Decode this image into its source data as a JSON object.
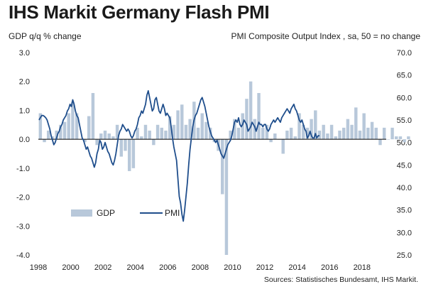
{
  "title": "IHS Markit Germany Flash PMI",
  "chart_data": {
    "type": "bar+line",
    "title": "IHS Markit Germany Flash PMI",
    "y_left_label": "GDP q/q % change",
    "y_right_label": "PMI Composite  Output Index  , sa, 50 = no change",
    "source": "Sources: Statistisches Bundesamt, IHS Markit.",
    "y_left_ticks": [
      "3.0",
      "2.0",
      "1.0",
      "0.0",
      "-1.0",
      "-2.0",
      "-3.0",
      "-4.0"
    ],
    "y_left_lim": [
      -4.0,
      3.0
    ],
    "y_right_ticks": [
      "70.0",
      "65.0",
      "60.0",
      "55.0",
      "50.0",
      "45.0",
      "40.0",
      "35.0",
      "30.0",
      "25.0"
    ],
    "y_right_lim": [
      25.0,
      70.0
    ],
    "x_ticks": [
      "1998",
      "2000",
      "2002",
      "2004",
      "2006",
      "2008",
      "2010",
      "2012",
      "2014",
      "2016",
      "2018"
    ],
    "x_range": [
      1998.0,
      2019.5
    ],
    "legend": {
      "gdp": "GDP",
      "pmi": "PMI",
      "position": "lower-left"
    },
    "colors": {
      "gdp": "#b8c8da",
      "pmi": "#1f4e8c",
      "zero_line": "#000000"
    },
    "gdp": {
      "name": "GDP",
      "start_year": 1998,
      "quarterly_values": [
        0.9,
        -0.1,
        0.3,
        0.1,
        0.3,
        0.5,
        0.6,
        0.9,
        1.3,
        0.9,
        0.0,
        -0.1,
        0.8,
        1.6,
        -0.2,
        0.2,
        0.3,
        0.2,
        0.1,
        0.5,
        -0.6,
        -0.4,
        -1.1,
        -1.0,
        0.4,
        0.1,
        0.5,
        0.3,
        -0.2,
        0.5,
        0.4,
        0.3,
        0.8,
        0.5,
        1.0,
        1.2,
        0.5,
        0.7,
        1.3,
        0.4,
        0.9,
        0.6,
        0.4,
        -0.1,
        -0.4,
        -1.9,
        -4.0,
        0.3,
        0.7,
        0.4,
        0.9,
        1.4,
        2.0,
        0.7,
        1.6,
        0.4,
        0.5,
        -0.1,
        0.2,
        0.0,
        -0.5,
        0.3,
        0.4,
        0.1,
        0.9,
        0.5,
        0.4,
        0.7,
        1.0,
        0.3,
        0.5,
        0.2,
        0.5,
        0.1,
        0.3,
        0.4,
        0.7,
        0.5,
        1.1,
        0.3,
        0.9,
        0.4,
        0.6,
        0.4,
        -0.2,
        0.4,
        0.0,
        0.4,
        0.1,
        0.1,
        -0.1,
        0.1
      ]
    },
    "pmi": {
      "name": "PMI",
      "start_year": 1998,
      "monthly_values": [
        55.0,
        55.5,
        56.0,
        56.0,
        55.8,
        55.5,
        55.0,
        54.0,
        53.0,
        51.5,
        50.5,
        49.5,
        50.0,
        51.0,
        52.0,
        52.5,
        53.5,
        54.0,
        55.0,
        55.5,
        56.0,
        57.0,
        57.5,
        58.5,
        58.0,
        59.5,
        58.5,
        57.0,
        56.0,
        55.5,
        54.0,
        52.5,
        51.0,
        50.5,
        49.5,
        48.5,
        49.0,
        48.0,
        47.0,
        46.5,
        45.5,
        44.5,
        45.5,
        47.5,
        48.5,
        50.5,
        50.0,
        48.5,
        49.0,
        50.0,
        49.0,
        48.0,
        47.5,
        46.5,
        45.5,
        45.0,
        46.0,
        47.5,
        49.5,
        51.5,
        52.5,
        53.0,
        54.0,
        53.5,
        53.0,
        52.5,
        53.0,
        52.5,
        51.5,
        51.0,
        51.5,
        52.5,
        53.0,
        54.0,
        55.5,
        56.0,
        57.0,
        56.5,
        57.5,
        58.5,
        60.5,
        61.5,
        60.0,
        58.5,
        57.0,
        57.5,
        59.5,
        60.0,
        58.5,
        57.0,
        56.5,
        57.5,
        58.5,
        57.5,
        56.0,
        56.5,
        56.0,
        55.5,
        53.5,
        51.0,
        49.0,
        47.5,
        46.0,
        42.0,
        38.0,
        36.5,
        34.0,
        32.5,
        35.0,
        38.0,
        41.0,
        45.0,
        48.5,
        51.0,
        53.5,
        55.0,
        56.0,
        56.5,
        57.5,
        58.5,
        59.5,
        60.0,
        59.0,
        58.0,
        56.5,
        55.0,
        53.5,
        52.5,
        51.5,
        51.0,
        50.5,
        50.0,
        50.5,
        49.5,
        48.5,
        47.5,
        47.0,
        46.5,
        47.5,
        48.5,
        49.5,
        50.0,
        50.5,
        51.5,
        53.0,
        54.5,
        55.0,
        54.5,
        55.5,
        54.0,
        53.5,
        54.0,
        55.0,
        54.5,
        54.0,
        52.5,
        53.0,
        53.5,
        54.5,
        54.0,
        53.5,
        52.5,
        53.5,
        54.5,
        54.0,
        54.0,
        53.5,
        54.0,
        54.0,
        53.0,
        52.5,
        53.0,
        54.0,
        54.5,
        55.0,
        54.5,
        55.0,
        55.5,
        55.0,
        54.5,
        55.5,
        56.0,
        56.5,
        57.0,
        57.5,
        57.0,
        56.5,
        57.5,
        58.0,
        58.5,
        57.5,
        57.0,
        56.0,
        55.0,
        54.5,
        55.0,
        54.0,
        53.0,
        52.5,
        51.0,
        51.5,
        52.5,
        51.5,
        51.0,
        51.0,
        52.0,
        51.0,
        51.5,
        51.5
      ]
    }
  }
}
